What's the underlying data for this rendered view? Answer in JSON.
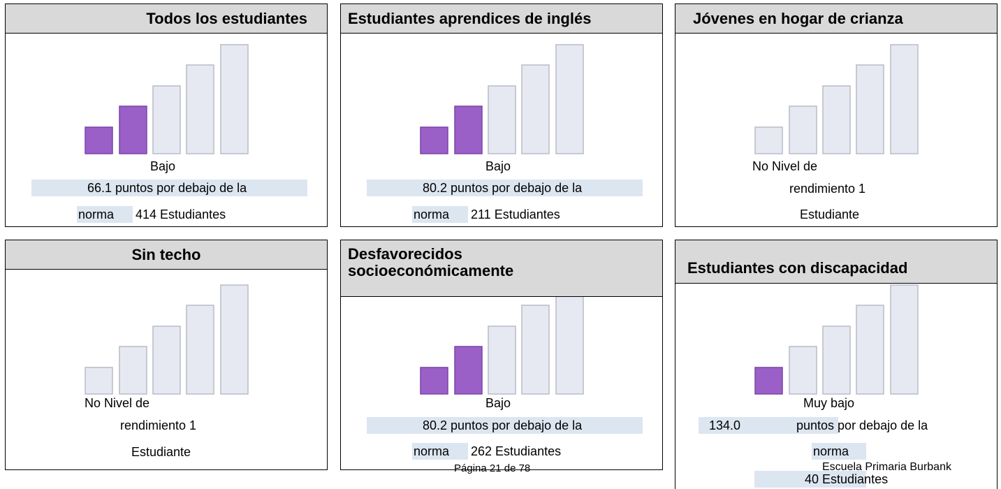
{
  "cards": [
    {
      "title": "Todos los estudiantes",
      "level": 2,
      "lines": [
        "Bajo",
        "66.1 puntos por debajo de la",
        "norma",
        "414 Estudiantes"
      ]
    },
    {
      "title": "Estudiantes aprendices de inglés",
      "level": 2,
      "lines": [
        "Bajo",
        "80.2 puntos por debajo de la",
        "norma",
        "211 Estudiantes"
      ]
    },
    {
      "title": "Jóvenes en hogar de crianza",
      "level": 0,
      "lines": [
        "No Nivel de",
        "rendimiento 1",
        "Estudiante"
      ]
    },
    {
      "title": "Sin techo",
      "level": 0,
      "lines": [
        "No Nivel de",
        "rendimiento 1",
        "Estudiante"
      ]
    },
    {
      "title": "Desfavorecidos socioeconómicamente",
      "level": 2,
      "lines": [
        "Bajo",
        "80.2 puntos por debajo de la",
        "norma",
        "262 Estudiantes"
      ]
    },
    {
      "title": "Estudiantes con discapacidad",
      "level": 1,
      "lines": [
        "Muy bajo",
        "134.0",
        "puntos por debajo de la",
        "norma",
        "40 Estudiantes"
      ]
    }
  ],
  "footer": {
    "page": "Página 21 de 78",
    "school": "Escuela Primaria Burbank"
  }
}
